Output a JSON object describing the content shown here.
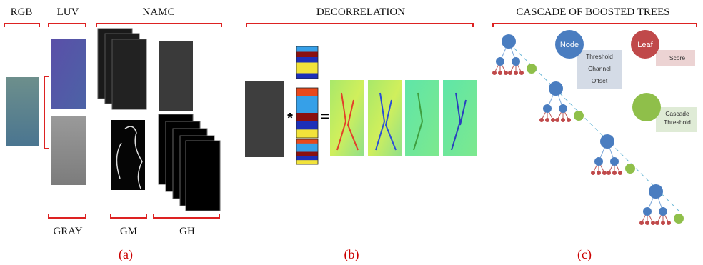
{
  "panels": [
    {
      "headers": [
        "RGB",
        "LUV",
        "NAMC"
      ],
      "footers": [
        "GRAY",
        "GM",
        "GH"
      ],
      "caption": "(a)"
    },
    {
      "header": "DECORRELATION",
      "operators": [
        "*",
        "="
      ],
      "caption": "(b)"
    },
    {
      "header": "CASCADE OF BOOSTED TREES",
      "legend": [
        {
          "label": "Node",
          "details": [
            "Threshold",
            "Channel",
            "Offset"
          ]
        },
        {
          "label": "Leaf",
          "details": [
            "Score"
          ]
        },
        {
          "details": [
            "Cascade",
            "Threshold"
          ]
        }
      ],
      "caption": "(c)"
    }
  ]
}
